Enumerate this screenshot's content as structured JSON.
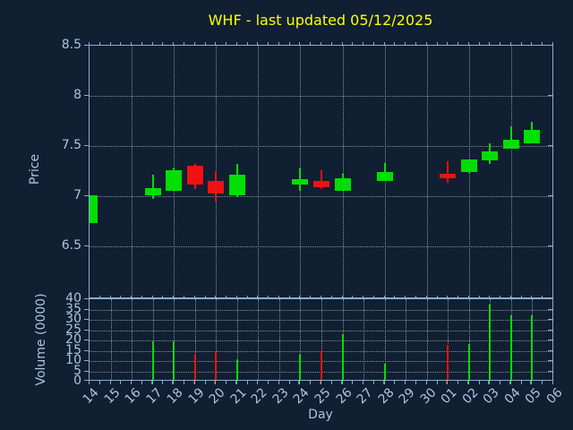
{
  "title": {
    "text": "WHF - last updated 05/12/2025",
    "color": "#ffff00"
  },
  "price_axis": {
    "label": "Price",
    "tick_labels": [
      "8.5",
      "8",
      "7.5",
      "7",
      "6.5"
    ],
    "tick_values": [
      8.5,
      8,
      7.5,
      7,
      6.5
    ]
  },
  "volume_axis": {
    "label": "Volume (0000)",
    "tick_labels": [
      "40",
      "35",
      "30",
      "25",
      "20",
      "15",
      "10",
      "5",
      "0"
    ],
    "tick_values": [
      40,
      35,
      30,
      25,
      20,
      15,
      10,
      5,
      0
    ]
  },
  "x_axis": {
    "label": "Day",
    "ticks": [
      "14",
      "15",
      "16",
      "17",
      "18",
      "19",
      "20",
      "21",
      "22",
      "23",
      "24",
      "25",
      "26",
      "27",
      "28",
      "29",
      "30",
      "01",
      "02",
      "03",
      "04",
      "05",
      "06"
    ]
  },
  "chart_data": {
    "type": "candlestick+volume",
    "title": "WHF - last updated 05/12/2025",
    "xlabel": "Day",
    "ylabel_price": "Price",
    "ylabel_volume": "Volume (0000)",
    "price_ylim": [
      5.97,
      8.5
    ],
    "volume_ylim": [
      0,
      40
    ],
    "grid": "dotted",
    "colors": {
      "up": "#00df00",
      "down": "#f01212",
      "background": "#101f31",
      "axes": "#88aed0",
      "text": "#aac6e2",
      "grid": "#9aa6b2",
      "title": "#ffff00"
    },
    "price_grid_day_indices": [
      2,
      4,
      6,
      8,
      10,
      12,
      14,
      16,
      18,
      20
    ],
    "candles": [
      {
        "day": "14",
        "open": 6.73,
        "high": 7.01,
        "low": 6.73,
        "close": 7.01,
        "volume": null
      },
      {
        "day": "17",
        "open": 7.01,
        "high": 7.21,
        "low": 6.97,
        "close": 7.08,
        "volume": 18.5
      },
      {
        "day": "18",
        "open": 7.05,
        "high": 7.29,
        "low": 7.05,
        "close": 7.26,
        "volume": 18.5
      },
      {
        "day": "19",
        "open": 7.3,
        "high": 7.32,
        "low": 7.07,
        "close": 7.12,
        "volume": 12.5
      },
      {
        "day": "20",
        "open": 7.15,
        "high": 7.25,
        "low": 6.95,
        "close": 7.03,
        "volume": 14
      },
      {
        "day": "21",
        "open": 7.01,
        "high": 7.32,
        "low": 6.99,
        "close": 7.21,
        "volume": 10
      },
      {
        "day": "24",
        "open": 7.12,
        "high": 7.28,
        "low": 7.05,
        "close": 7.17,
        "volume": 12.5
      },
      {
        "day": "25",
        "open": 7.15,
        "high": 7.26,
        "low": 7.07,
        "close": 7.09,
        "volume": 14.5
      },
      {
        "day": "26",
        "open": 7.05,
        "high": 7.22,
        "low": 7.05,
        "close": 7.18,
        "volume": 22
      },
      {
        "day": "28",
        "open": 7.15,
        "high": 7.33,
        "low": 7.15,
        "close": 7.24,
        "volume": 8
      },
      {
        "day": "01",
        "open": 7.22,
        "high": 7.35,
        "low": 7.13,
        "close": 7.18,
        "volume": 17
      },
      {
        "day": "02",
        "open": 7.24,
        "high": 7.37,
        "low": 7.23,
        "close": 7.37,
        "volume": 17.5
      },
      {
        "day": "03",
        "open": 7.36,
        "high": 7.53,
        "low": 7.32,
        "close": 7.45,
        "volume": 36.5
      },
      {
        "day": "04",
        "open": 7.47,
        "high": 7.7,
        "low": 7.47,
        "close": 7.56,
        "volume": 31.5
      },
      {
        "day": "05",
        "open": 7.53,
        "high": 7.74,
        "low": 7.53,
        "close": 7.66,
        "volume": 31.5
      }
    ]
  }
}
